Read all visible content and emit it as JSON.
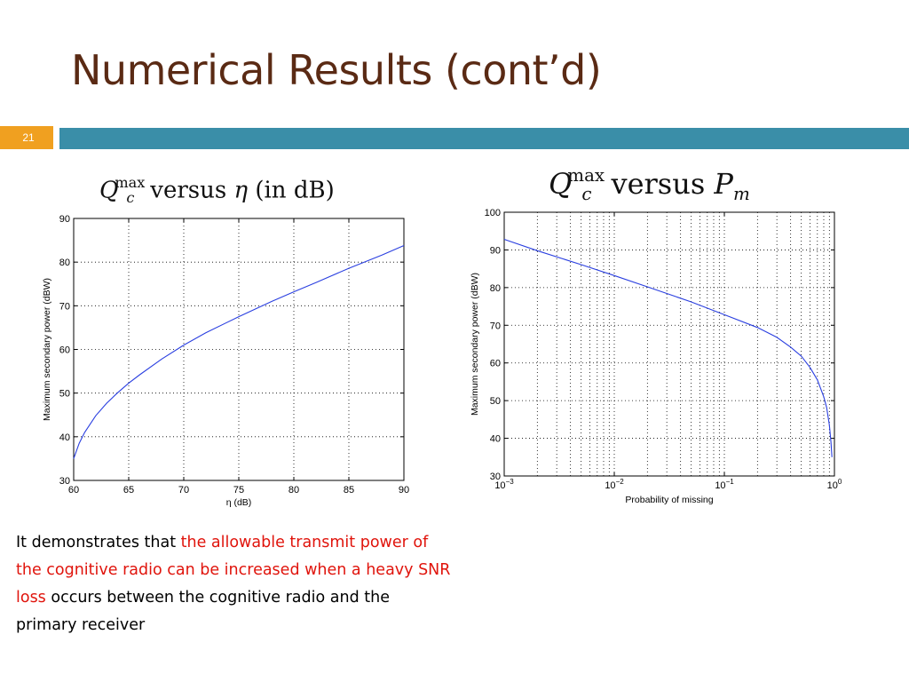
{
  "slide": {
    "title": "Numerical Results (cont’d)",
    "page_number": "21",
    "colors": {
      "title": "#5a2a14",
      "badge": "#f0a020",
      "bar": "#3a8ea8",
      "highlight": "#e0140c",
      "curve": "#2a3fe0"
    }
  },
  "headings": {
    "left": {
      "q": "Q",
      "sup": "max",
      "sub": "c",
      "versus": "versus",
      "var": "η",
      "unit": "(in  dB)"
    },
    "right": {
      "q": "Q",
      "sup": "max",
      "sub": "c",
      "versus": "versus",
      "var": "P",
      "var_sub": "m"
    }
  },
  "chart_data": [
    {
      "type": "line",
      "xlabel": "η (dB)",
      "ylabel": "Maximum secondary power (dBW)",
      "xlim": [
        60,
        90
      ],
      "ylim": [
        30,
        90
      ],
      "xticks": [
        "60",
        "65",
        "70",
        "75",
        "80",
        "85",
        "90"
      ],
      "yticks": [
        "30",
        "40",
        "50",
        "60",
        "70",
        "80",
        "90"
      ],
      "grid": true,
      "x": [
        60,
        60.5,
        61,
        62,
        63,
        64,
        65,
        66,
        68,
        70,
        72,
        75,
        78,
        80,
        82,
        85,
        88,
        90
      ],
      "y": [
        35,
        38.5,
        41,
        44.8,
        47.7,
        50.1,
        52.3,
        54.2,
        57.8,
        61,
        63.8,
        67.5,
        71,
        73.2,
        75.3,
        78.6,
        81.6,
        83.8
      ]
    },
    {
      "type": "line",
      "xscale": "log",
      "xlabel": "Probability of missing",
      "ylabel": "Maximum secondary power (dBW)",
      "xlim": [
        0.001,
        1
      ],
      "ylim": [
        30,
        100
      ],
      "xticks": [
        {
          "base": "10",
          "exp": "−3",
          "value": 0.001
        },
        {
          "base": "10",
          "exp": "−2",
          "value": 0.01
        },
        {
          "base": "10",
          "exp": "−1",
          "value": 0.1
        },
        {
          "base": "10",
          "exp": "0",
          "value": 1
        }
      ],
      "yticks": [
        "30",
        "40",
        "50",
        "60",
        "70",
        "80",
        "90",
        "100"
      ],
      "grid": true,
      "x": [
        0.001,
        0.002,
        0.005,
        0.01,
        0.02,
        0.05,
        0.1,
        0.2,
        0.3,
        0.4,
        0.5,
        0.6,
        0.7,
        0.8,
        0.85,
        0.9,
        0.93,
        0.95
      ],
      "y": [
        92.8,
        89.8,
        86.1,
        83.2,
        80.2,
        76.2,
        72.8,
        69.4,
        66.8,
        64.2,
        61.8,
        58.8,
        55.5,
        51,
        48.2,
        43.5,
        39,
        35
      ]
    }
  ],
  "body": {
    "part1": "It demonstrates that ",
    "highlight": "the allowable transmit power of the cognitive radio can be increased when a heavy SNR loss",
    "part2": " occurs between the cognitive radio and the primary receiver"
  }
}
